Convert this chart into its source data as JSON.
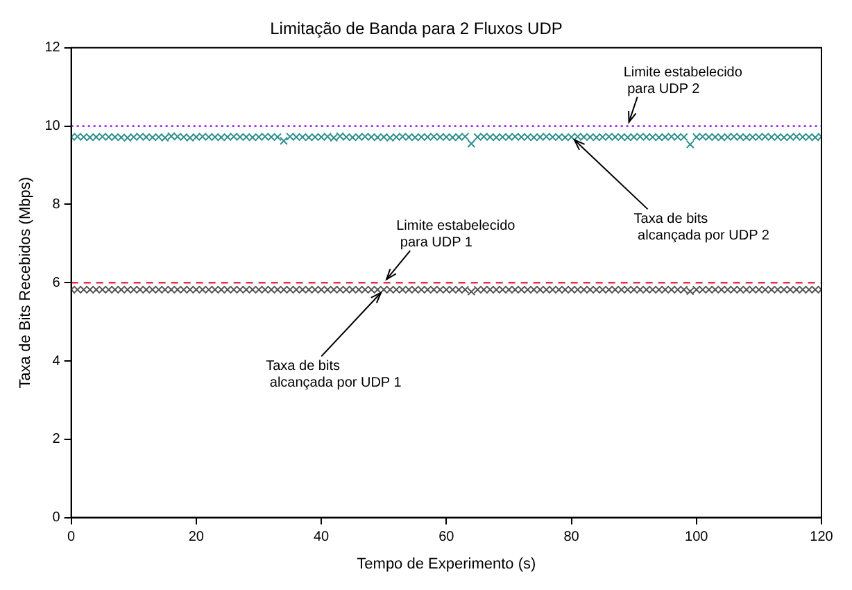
{
  "chart_data": {
    "type": "scatter",
    "title": "Limitação de Banda para 2 Fluxos UDP",
    "xlabel": "Tempo de Experimento (s)",
    "ylabel": "Taxa de Bits Recebidos (Mbps)",
    "x": [
      0,
      1,
      2,
      3,
      4,
      5,
      6,
      7,
      8,
      9,
      10,
      11,
      12,
      13,
      14,
      15,
      16,
      17,
      18,
      19,
      20,
      21,
      22,
      23,
      24,
      25,
      26,
      27,
      28,
      29,
      30,
      31,
      32,
      33,
      34,
      35,
      36,
      37,
      38,
      39,
      40,
      41,
      42,
      43,
      44,
      45,
      46,
      47,
      48,
      49,
      50,
      51,
      52,
      53,
      54,
      55,
      56,
      57,
      58,
      59,
      60,
      61,
      62,
      63,
      64,
      65,
      66,
      67,
      68,
      69,
      70,
      71,
      72,
      73,
      74,
      75,
      76,
      77,
      78,
      79,
      80,
      81,
      82,
      83,
      84,
      85,
      86,
      87,
      88,
      89,
      90,
      91,
      92,
      93,
      94,
      95,
      96,
      97,
      98,
      99,
      100,
      101,
      102,
      103,
      104,
      105,
      106,
      107,
      108,
      109,
      110,
      111,
      112,
      113,
      114,
      115,
      116,
      117,
      118,
      119,
      120
    ],
    "series": [
      {
        "color": "#2f8f8f",
        "marker": "cross",
        "values": [
          9.72,
          9.73,
          9.72,
          9.71,
          9.72,
          9.73,
          9.72,
          9.72,
          9.71,
          9.7,
          9.72,
          9.73,
          9.72,
          9.71,
          9.72,
          9.7,
          9.74,
          9.73,
          9.72,
          9.7,
          9.72,
          9.73,
          9.72,
          9.72,
          9.71,
          9.72,
          9.73,
          9.72,
          9.72,
          9.71,
          9.72,
          9.73,
          9.72,
          9.72,
          9.62,
          9.73,
          9.72,
          9.72,
          9.71,
          9.72,
          9.72,
          9.73,
          9.7,
          9.74,
          9.72,
          9.71,
          9.72,
          9.73,
          9.72,
          9.71,
          9.72,
          9.7,
          9.72,
          9.73,
          9.72,
          9.71,
          9.72,
          9.72,
          9.73,
          9.72,
          9.72,
          9.71,
          9.72,
          9.73,
          9.55,
          9.72,
          9.73,
          9.72,
          9.71,
          9.72,
          9.72,
          9.73,
          9.72,
          9.72,
          9.71,
          9.72,
          9.73,
          9.72,
          9.72,
          9.71,
          9.72,
          9.73,
          9.72,
          9.72,
          9.71,
          9.72,
          9.73,
          9.72,
          9.72,
          9.71,
          9.72,
          9.73,
          9.72,
          9.72,
          9.71,
          9.72,
          9.73,
          9.72,
          9.72,
          9.53,
          9.72,
          9.73,
          9.72,
          9.72,
          9.71,
          9.72,
          9.73,
          9.72,
          9.71,
          9.72,
          9.72,
          9.73,
          9.72,
          9.72,
          9.71,
          9.72,
          9.73,
          9.72,
          9.72,
          9.71,
          9.73
        ]
      },
      {
        "color": "#555555",
        "marker": "cross",
        "values": [
          5.82,
          5.82,
          5.82,
          5.82,
          5.82,
          5.82,
          5.82,
          5.82,
          5.82,
          5.82,
          5.82,
          5.82,
          5.82,
          5.82,
          5.82,
          5.82,
          5.82,
          5.82,
          5.82,
          5.82,
          5.82,
          5.82,
          5.82,
          5.82,
          5.82,
          5.82,
          5.82,
          5.82,
          5.82,
          5.82,
          5.82,
          5.82,
          5.82,
          5.82,
          5.82,
          5.82,
          5.82,
          5.82,
          5.82,
          5.82,
          5.82,
          5.82,
          5.82,
          5.82,
          5.82,
          5.82,
          5.82,
          5.82,
          5.82,
          5.82,
          5.82,
          5.82,
          5.82,
          5.82,
          5.82,
          5.82,
          5.82,
          5.82,
          5.82,
          5.82,
          5.82,
          5.82,
          5.82,
          5.82,
          5.77,
          5.82,
          5.82,
          5.82,
          5.82,
          5.82,
          5.82,
          5.82,
          5.82,
          5.82,
          5.82,
          5.82,
          5.82,
          5.82,
          5.82,
          5.82,
          5.82,
          5.82,
          5.82,
          5.82,
          5.82,
          5.82,
          5.82,
          5.82,
          5.82,
          5.82,
          5.82,
          5.82,
          5.82,
          5.82,
          5.82,
          5.82,
          5.82,
          5.82,
          5.82,
          5.78,
          5.82,
          5.82,
          5.82,
          5.82,
          5.82,
          5.82,
          5.82,
          5.82,
          5.82,
          5.82,
          5.82,
          5.82,
          5.82,
          5.82,
          5.82,
          5.82,
          5.82,
          5.82,
          5.82,
          5.82,
          5.82
        ]
      }
    ],
    "xlim": [
      0,
      120
    ],
    "xticks": [
      0,
      20,
      40,
      60,
      80,
      100,
      120
    ],
    "ylim": [
      0,
      12
    ],
    "yticks": [
      0,
      2,
      4,
      6,
      8,
      10,
      12
    ],
    "grid": false,
    "legend": false,
    "ref_lines": [
      {
        "axis": "y",
        "value": 10,
        "color": "#a030e0",
        "line_style": "dotted"
      },
      {
        "axis": "y",
        "value": 6,
        "color": "#e0304a",
        "line_style": "dashed"
      }
    ],
    "annotations": [
      {
        "text": "Limite estabelecido\n para UDP 2",
        "x": 89,
        "y": 10
      },
      {
        "text": "Taxa de bits\n alcançada por UDP 2",
        "x": 80,
        "y": 9.72
      },
      {
        "text": "Limite estabelecido\n para UDP 1",
        "x": 50,
        "y": 6
      },
      {
        "text": "Taxa de bits\n alcançada por UDP 1",
        "x": 50,
        "y": 5.82
      }
    ]
  }
}
